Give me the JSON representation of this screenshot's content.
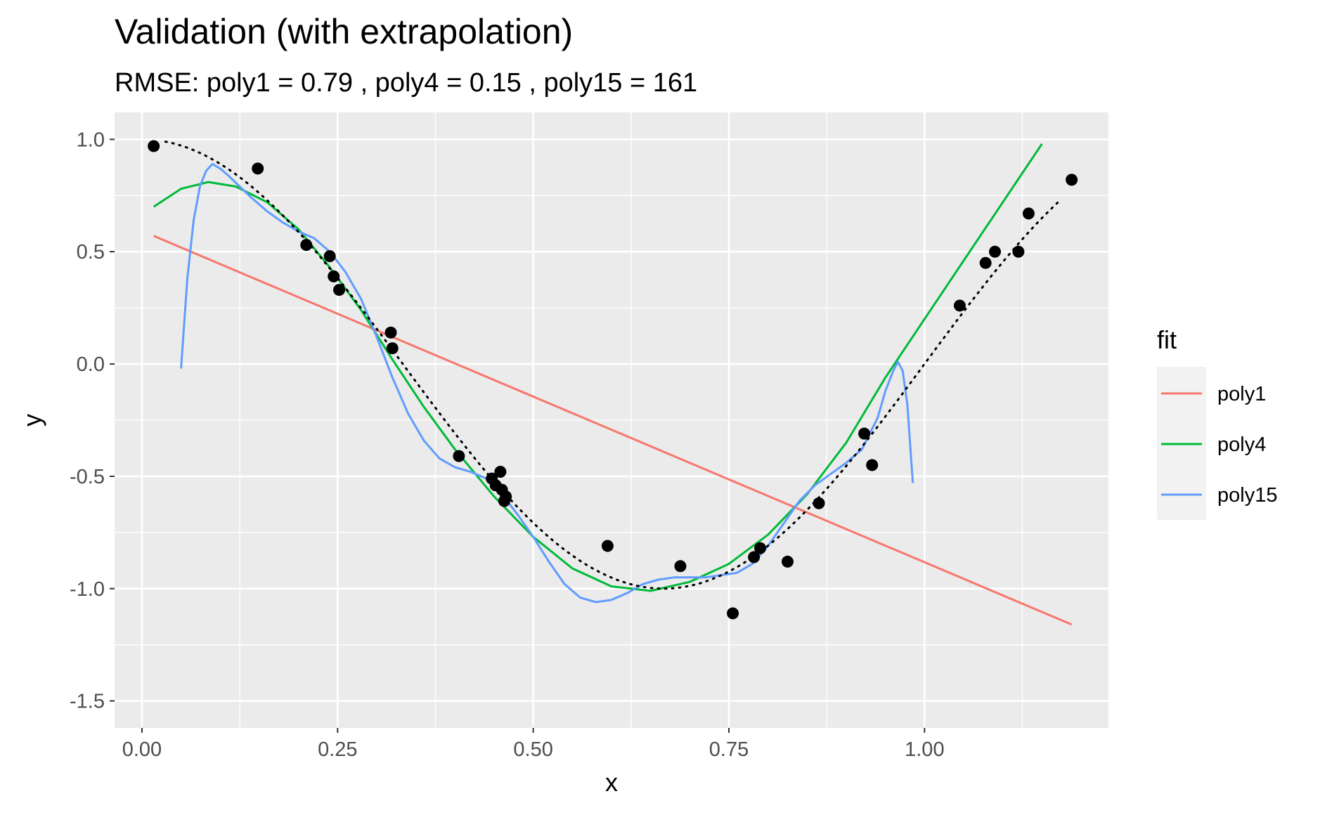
{
  "chart_data": {
    "type": "scatter",
    "title": "Validation (with extrapolation)",
    "subtitle": "RMSE: poly1 = 0.79 , poly4 = 0.15 , poly15 = 161",
    "xlabel": "x",
    "ylabel": "y",
    "xlim": [
      -0.035,
      1.235
    ],
    "ylim": [
      -1.62,
      1.12
    ],
    "x_ticks": [
      0.0,
      0.25,
      0.5,
      0.75,
      1.0
    ],
    "x_tick_labels": [
      "0.00",
      "0.25",
      "0.50",
      "0.75",
      "1.00"
    ],
    "y_ticks": [
      -1.5,
      -1.0,
      -0.5,
      0.0,
      0.5,
      1.0
    ],
    "y_tick_labels": [
      "-1.5",
      "-1.0",
      "-0.5",
      "0.0",
      "0.5",
      "1.0"
    ],
    "grid": true,
    "background": "#ebebeb",
    "legend": {
      "title": "fit",
      "placement": "right",
      "entries": [
        {
          "label": "poly1",
          "color": "#f8766d"
        },
        {
          "label": "poly4",
          "color": "#00ba38"
        },
        {
          "label": "poly15",
          "color": "#619cff"
        }
      ]
    },
    "points": {
      "color": "#000000",
      "x": [
        0.015,
        0.148,
        0.21,
        0.24,
        0.245,
        0.252,
        0.318,
        0.32,
        0.405,
        0.447,
        0.452,
        0.46,
        0.458,
        0.463,
        0.465,
        0.595,
        0.688,
        0.755,
        0.782,
        0.79,
        0.825,
        0.865,
        0.923,
        0.933,
        1.045,
        1.078,
        1.09,
        1.12,
        1.133,
        1.188
      ],
      "y": [
        0.97,
        0.87,
        0.53,
        0.48,
        0.39,
        0.33,
        0.14,
        0.07,
        -0.41,
        -0.51,
        -0.54,
        -0.56,
        -0.48,
        -0.61,
        -0.59,
        -0.81,
        -0.9,
        -1.11,
        -0.86,
        -0.82,
        -0.88,
        -0.62,
        -0.31,
        -0.45,
        0.26,
        0.45,
        0.5,
        0.5,
        0.67,
        0.82
      ]
    },
    "true_curve": {
      "style": "dotted",
      "color": "#000000",
      "function": "cos(1.5*pi*x)",
      "x_range": [
        0.03,
        1.17
      ]
    },
    "series": [
      {
        "name": "poly1",
        "color": "#f8766d",
        "x": [
          0.015,
          1.188
        ],
        "y": [
          0.57,
          -1.16
        ]
      },
      {
        "name": "poly4",
        "color": "#00ba38",
        "x": [
          0.015,
          0.05,
          0.085,
          0.12,
          0.16,
          0.2,
          0.24,
          0.28,
          0.32,
          0.36,
          0.4,
          0.45,
          0.5,
          0.55,
          0.6,
          0.65,
          0.7,
          0.75,
          0.8,
          0.85,
          0.9,
          0.95,
          1.0,
          1.05,
          1.1,
          1.15
        ],
        "y": [
          0.7,
          0.78,
          0.81,
          0.79,
          0.72,
          0.6,
          0.43,
          0.24,
          0.02,
          -0.19,
          -0.38,
          -0.59,
          -0.77,
          -0.91,
          -0.99,
          -1.01,
          -0.97,
          -0.89,
          -0.76,
          -0.58,
          -0.35,
          -0.06,
          0.2,
          0.46,
          0.72,
          0.98
        ]
      },
      {
        "name": "poly15",
        "color": "#619cff",
        "x": [
          0.05,
          0.058,
          0.066,
          0.074,
          0.082,
          0.09,
          0.1,
          0.11,
          0.125,
          0.14,
          0.16,
          0.18,
          0.2,
          0.22,
          0.24,
          0.26,
          0.28,
          0.3,
          0.32,
          0.34,
          0.36,
          0.38,
          0.4,
          0.42,
          0.44,
          0.46,
          0.48,
          0.5,
          0.52,
          0.54,
          0.56,
          0.58,
          0.6,
          0.62,
          0.64,
          0.66,
          0.68,
          0.7,
          0.72,
          0.74,
          0.76,
          0.78,
          0.8,
          0.82,
          0.84,
          0.86,
          0.88,
          0.9,
          0.92,
          0.94,
          0.95,
          0.96,
          0.966,
          0.972,
          0.978,
          0.985
        ],
        "y": [
          -0.02,
          0.38,
          0.64,
          0.79,
          0.86,
          0.89,
          0.87,
          0.84,
          0.79,
          0.74,
          0.68,
          0.63,
          0.59,
          0.56,
          0.5,
          0.41,
          0.29,
          0.12,
          -0.06,
          -0.22,
          -0.34,
          -0.42,
          -0.46,
          -0.48,
          -0.51,
          -0.58,
          -0.67,
          -0.77,
          -0.88,
          -0.98,
          -1.04,
          -1.06,
          -1.05,
          -1.02,
          -0.98,
          -0.96,
          -0.95,
          -0.95,
          -0.95,
          -0.94,
          -0.93,
          -0.89,
          -0.81,
          -0.71,
          -0.61,
          -0.54,
          -0.49,
          -0.44,
          -0.38,
          -0.24,
          -0.12,
          -0.03,
          0.01,
          -0.03,
          -0.18,
          -0.53
        ]
      }
    ]
  }
}
